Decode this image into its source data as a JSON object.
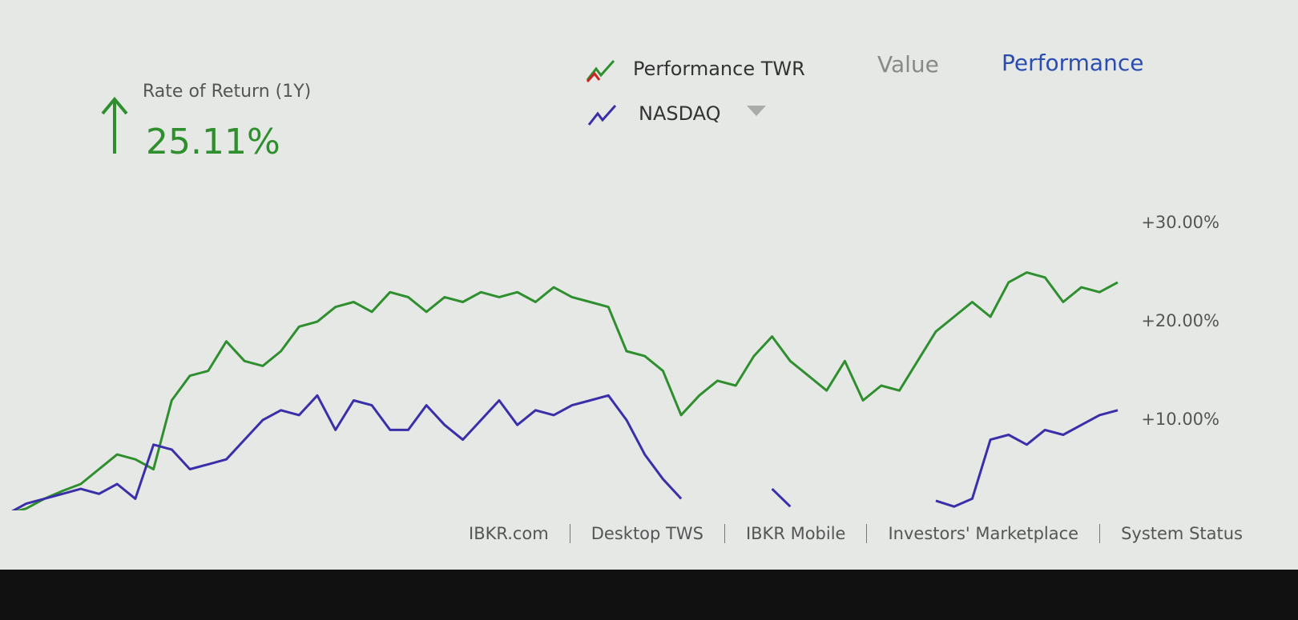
{
  "header": {
    "metric_label": "Rate of Return (1Y)",
    "metric_value": "25.11%",
    "tabs": [
      "Value",
      "Performance"
    ]
  },
  "chart_data": {
    "type": "line",
    "series": [
      {
        "name": "Performance TWR",
        "color": "#2f8f2f",
        "values": [
          0.5,
          1.0,
          2.0,
          2.8,
          3.5,
          5.0,
          6.5,
          6.0,
          5.0,
          12.0,
          14.5,
          15.0,
          18.0,
          16.0,
          15.5,
          17.0,
          19.5,
          20.0,
          21.5,
          22.0,
          21.0,
          23.0,
          22.5,
          21.0,
          22.5,
          22.0,
          23.0,
          22.5,
          23.0,
          22.0,
          23.5,
          22.5,
          22.0,
          21.5,
          17.0,
          16.5,
          15.0,
          10.5,
          12.5,
          14.0,
          13.5,
          16.5,
          18.5,
          16.0,
          14.5,
          13.0,
          16.0,
          12.0,
          13.5,
          13.0,
          16.0,
          19.0,
          20.5,
          22.0,
          20.5,
          24.0,
          25.0,
          24.5,
          22.0,
          23.5,
          23.0,
          24.0
        ]
      },
      {
        "name": "NASDAQ",
        "color": "#3a2fa8",
        "values": [
          0.5,
          1.5,
          2.0,
          2.5,
          3.0,
          2.5,
          3.5,
          2.0,
          7.5,
          7.0,
          5.0,
          5.5,
          6.0,
          8.0,
          10.0,
          11.0,
          10.5,
          12.5,
          9.0,
          12.0,
          11.5,
          9.0,
          9.0,
          11.5,
          9.5,
          8.0,
          10.0,
          12.0,
          9.5,
          11.0,
          10.5,
          11.5,
          12.0,
          12.5,
          10.0,
          6.5,
          4.0,
          2.0,
          null,
          null,
          null,
          null,
          3.0,
          1.2,
          null,
          null,
          null,
          null,
          null,
          null,
          null,
          1.8,
          1.2,
          2.0,
          8.0,
          8.5,
          7.5,
          9.0,
          8.5,
          9.5,
          10.5,
          11.0
        ]
      }
    ],
    "ylim": [
      0,
      34
    ],
    "yticks": [
      {
        "value": 10,
        "label": "+10.00%"
      },
      {
        "value": 20,
        "label": "+20.00%"
      },
      {
        "value": 30,
        "label": "+30.00%"
      }
    ]
  },
  "footer": {
    "links": [
      "IBKR.com",
      "Desktop TWS",
      "IBKR Mobile",
      "Investors' Marketplace",
      "System Status"
    ]
  }
}
